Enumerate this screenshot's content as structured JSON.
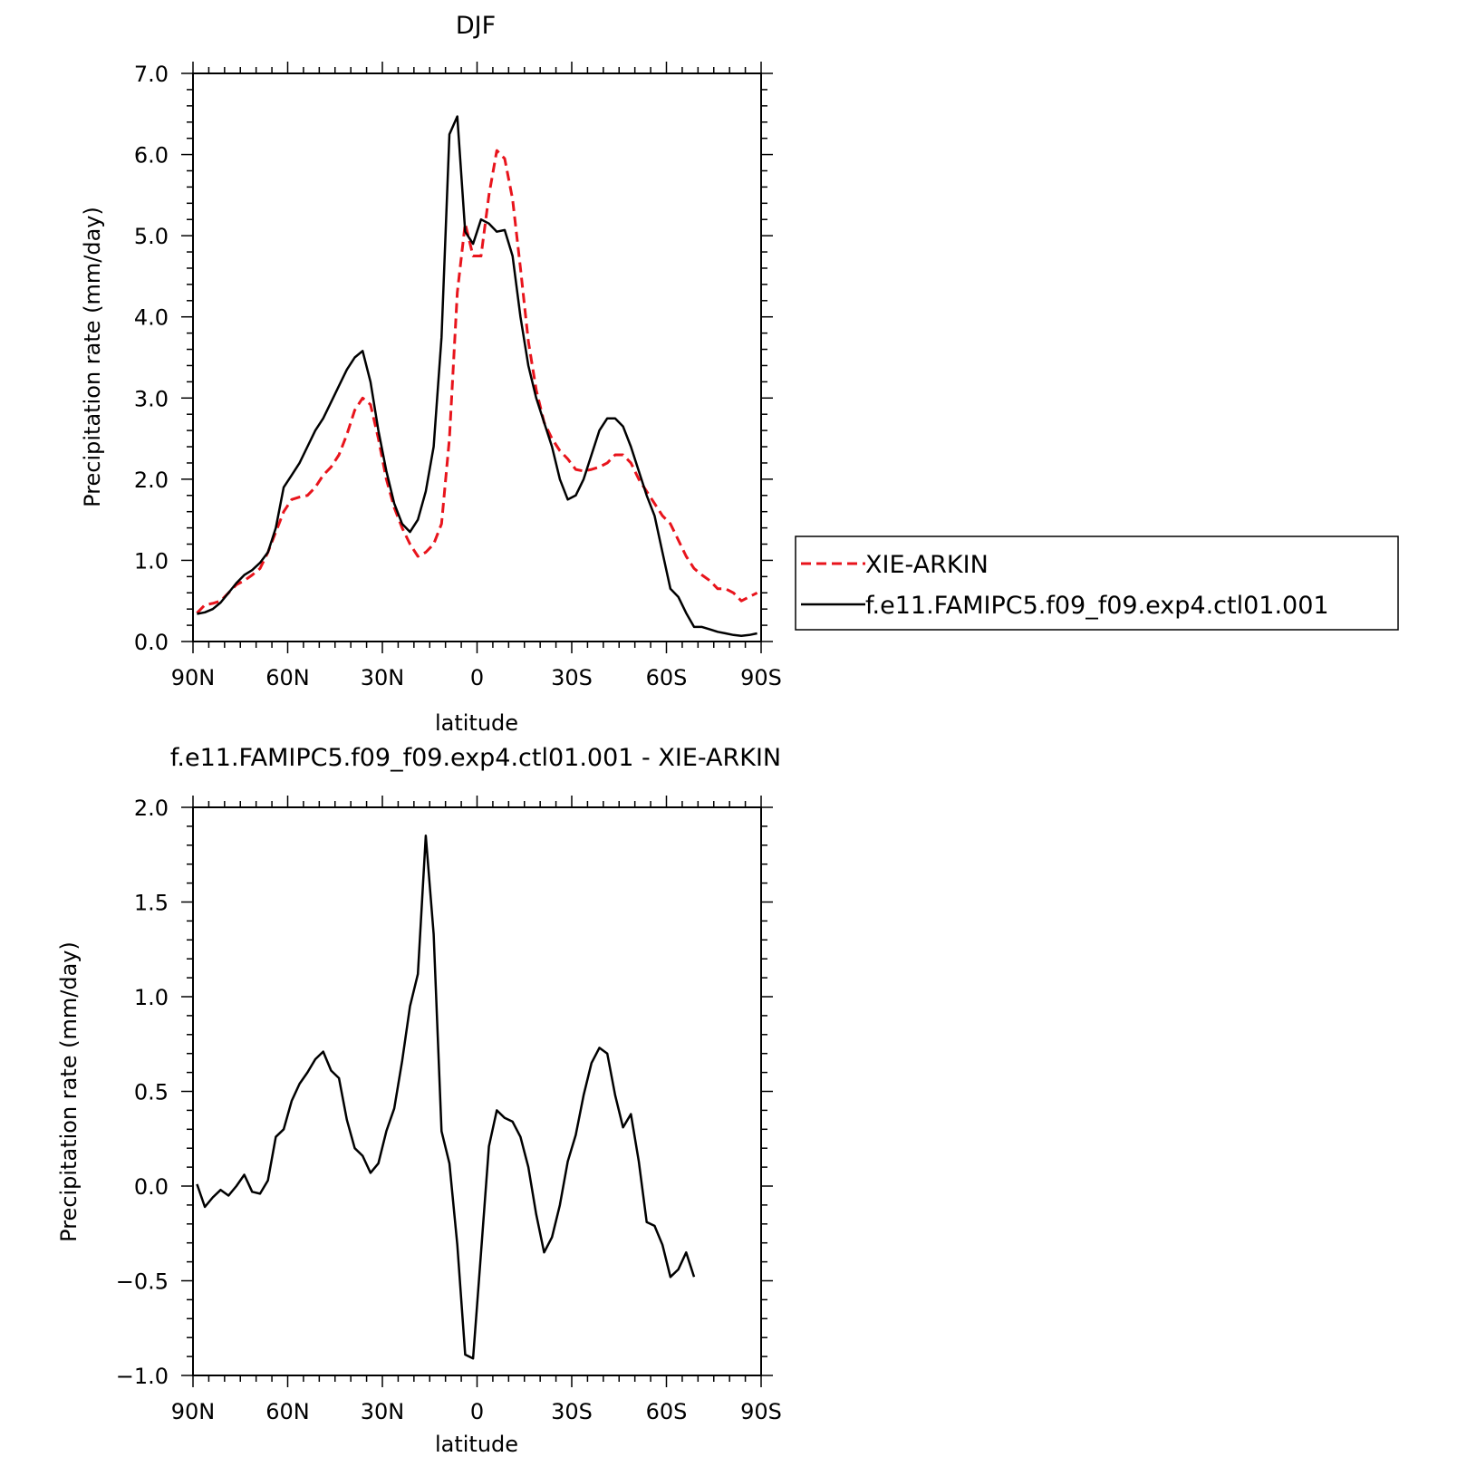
{
  "chart_data": [
    {
      "type": "line",
      "title": "DJF",
      "xlabel": "latitude",
      "ylabel": "Precipitation rate (mm/day)",
      "xlim": [
        90,
        -90
      ],
      "ylim": [
        0,
        7
      ],
      "xticks": [
        90,
        60,
        30,
        0,
        -30,
        -60,
        -90
      ],
      "xtick_labels": [
        "90N",
        "60N",
        "30N",
        "0",
        "30S",
        "60S",
        "90S"
      ],
      "yticks": [
        0,
        1,
        2,
        3,
        4,
        5,
        6,
        7
      ],
      "ytick_labels": [
        "0.0",
        "1.0",
        "2.0",
        "3.0",
        "4.0",
        "5.0",
        "6.0",
        "7.0"
      ],
      "legend": "right",
      "series": [
        {
          "name": "XIE-ARKIN",
          "color": "#e8141c",
          "dash": "dashed",
          "points": [
            [
              88.75,
              0.35
            ],
            [
              86.25,
              0.45
            ],
            [
              83.75,
              0.47
            ],
            [
              81.25,
              0.5
            ],
            [
              78.75,
              0.6
            ],
            [
              76.25,
              0.7
            ],
            [
              73.75,
              0.75
            ],
            [
              71.25,
              0.82
            ],
            [
              68.75,
              0.9
            ],
            [
              66.25,
              1.1
            ],
            [
              63.75,
              1.35
            ],
            [
              61.25,
              1.6
            ],
            [
              58.75,
              1.75
            ],
            [
              56.25,
              1.78
            ],
            [
              53.75,
              1.8
            ],
            [
              51.25,
              1.9
            ],
            [
              48.75,
              2.05
            ],
            [
              46.25,
              2.15
            ],
            [
              43.75,
              2.3
            ],
            [
              41.25,
              2.55
            ],
            [
              38.75,
              2.85
            ],
            [
              36.25,
              3.0
            ],
            [
              33.75,
              2.92
            ],
            [
              31.25,
              2.5
            ],
            [
              28.75,
              2.0
            ],
            [
              26.25,
              1.65
            ],
            [
              23.75,
              1.4
            ],
            [
              21.25,
              1.2
            ],
            [
              18.75,
              1.05
            ],
            [
              16.25,
              1.1
            ],
            [
              13.75,
              1.2
            ],
            [
              11.25,
              1.45
            ],
            [
              8.75,
              2.5
            ],
            [
              6.25,
              4.3
            ],
            [
              3.75,
              5.15
            ],
            [
              1.25,
              4.75
            ],
            [
              -1.25,
              4.75
            ],
            [
              -3.75,
              5.5
            ],
            [
              -6.25,
              6.05
            ],
            [
              -8.75,
              5.95
            ],
            [
              -11.25,
              5.45
            ],
            [
              -13.75,
              4.6
            ],
            [
              -16.25,
              3.7
            ],
            [
              -18.75,
              3.1
            ],
            [
              -21.25,
              2.7
            ],
            [
              -23.75,
              2.5
            ],
            [
              -26.25,
              2.35
            ],
            [
              -28.75,
              2.25
            ],
            [
              -31.25,
              2.12
            ],
            [
              -33.75,
              2.1
            ],
            [
              -36.25,
              2.12
            ],
            [
              -38.75,
              2.15
            ],
            [
              -41.25,
              2.2
            ],
            [
              -43.75,
              2.3
            ],
            [
              -46.25,
              2.3
            ],
            [
              -48.75,
              2.2
            ],
            [
              -51.25,
              2.0
            ],
            [
              -53.75,
              1.85
            ],
            [
              -56.25,
              1.7
            ],
            [
              -58.75,
              1.55
            ],
            [
              -61.25,
              1.45
            ],
            [
              -63.75,
              1.25
            ],
            [
              -66.25,
              1.05
            ],
            [
              -68.75,
              0.9
            ],
            [
              -71.25,
              0.82
            ],
            [
              -73.75,
              0.75
            ],
            [
              -76.25,
              0.65
            ],
            [
              -78.75,
              0.65
            ],
            [
              -81.25,
              0.6
            ],
            [
              -83.75,
              0.5
            ],
            [
              -86.25,
              0.55
            ],
            [
              -88.75,
              0.6
            ]
          ]
        },
        {
          "name": "f.e11.FAMIPC5.f09_f09.exp4.ctl01.001",
          "color": "#000000",
          "dash": "solid",
          "points": [
            [
              88.75,
              0.34
            ],
            [
              86.25,
              0.36
            ],
            [
              83.75,
              0.4
            ],
            [
              81.25,
              0.48
            ],
            [
              78.75,
              0.6
            ],
            [
              76.25,
              0.72
            ],
            [
              73.75,
              0.82
            ],
            [
              71.25,
              0.88
            ],
            [
              68.75,
              0.97
            ],
            [
              66.25,
              1.1
            ],
            [
              63.75,
              1.4
            ],
            [
              61.25,
              1.9
            ],
            [
              58.75,
              2.05
            ],
            [
              56.25,
              2.2
            ],
            [
              53.75,
              2.4
            ],
            [
              51.25,
              2.6
            ],
            [
              48.75,
              2.75
            ],
            [
              46.25,
              2.95
            ],
            [
              43.75,
              3.15
            ],
            [
              41.25,
              3.35
            ],
            [
              38.75,
              3.5
            ],
            [
              36.25,
              3.58
            ],
            [
              33.75,
              3.2
            ],
            [
              31.25,
              2.6
            ],
            [
              28.75,
              2.1
            ],
            [
              26.25,
              1.7
            ],
            [
              23.75,
              1.45
            ],
            [
              21.25,
              1.35
            ],
            [
              18.75,
              1.5
            ],
            [
              16.25,
              1.85
            ],
            [
              13.75,
              2.4
            ],
            [
              11.25,
              3.75
            ],
            [
              8.75,
              6.25
            ],
            [
              6.25,
              6.47
            ],
            [
              3.75,
              5.05
            ],
            [
              1.25,
              4.9
            ],
            [
              -1.25,
              5.2
            ],
            [
              -3.75,
              5.15
            ],
            [
              -6.25,
              5.05
            ],
            [
              -8.75,
              5.07
            ],
            [
              -11.25,
              4.75
            ],
            [
              -13.75,
              4.0
            ],
            [
              -16.25,
              3.4
            ],
            [
              -18.75,
              3.0
            ],
            [
              -21.25,
              2.7
            ],
            [
              -23.75,
              2.4
            ],
            [
              -26.25,
              2.0
            ],
            [
              -28.75,
              1.75
            ],
            [
              -31.25,
              1.8
            ],
            [
              -33.75,
              2.0
            ],
            [
              -36.25,
              2.3
            ],
            [
              -38.75,
              2.6
            ],
            [
              -41.25,
              2.75
            ],
            [
              -43.75,
              2.75
            ],
            [
              -46.25,
              2.65
            ],
            [
              -48.75,
              2.4
            ],
            [
              -51.25,
              2.1
            ],
            [
              -53.75,
              1.8
            ],
            [
              -56.25,
              1.55
            ],
            [
              -58.75,
              1.1
            ],
            [
              -61.25,
              0.65
            ],
            [
              -63.75,
              0.55
            ],
            [
              -66.25,
              0.35
            ],
            [
              -68.75,
              0.18
            ],
            [
              -71.25,
              0.18
            ],
            [
              -73.75,
              0.15
            ],
            [
              -76.25,
              0.12
            ],
            [
              -78.75,
              0.1
            ],
            [
              -81.25,
              0.08
            ],
            [
              -83.75,
              0.07
            ],
            [
              -86.25,
              0.08
            ],
            [
              -88.75,
              0.1
            ]
          ]
        }
      ]
    },
    {
      "type": "line",
      "title": "f.e11.FAMIPC5.f09_f09.exp4.ctl01.001 - XIE-ARKIN",
      "xlabel": "latitude",
      "ylabel": "Precipitation rate (mm/day)",
      "xlim": [
        90,
        -90
      ],
      "ylim": [
        -1.0,
        2.0
      ],
      "xticks": [
        90,
        60,
        30,
        0,
        -30,
        -60,
        -90
      ],
      "xtick_labels": [
        "90N",
        "60N",
        "30N",
        "0",
        "30S",
        "60S",
        "90S"
      ],
      "yticks": [
        -1.0,
        -0.5,
        0.0,
        0.5,
        1.0,
        1.5,
        2.0
      ],
      "ytick_labels": [
        "−1.0",
        "−0.5",
        "0.0",
        "0.5",
        "1.0",
        "1.5",
        "2.0"
      ],
      "series": [
        {
          "color": "#000000",
          "dash": "solid",
          "points": [
            [
              88.75,
              0.01
            ],
            [
              86.25,
              -0.11
            ],
            [
              83.75,
              -0.06
            ],
            [
              81.25,
              -0.02
            ],
            [
              78.75,
              -0.05
            ],
            [
              76.25,
              0.0
            ],
            [
              73.75,
              0.06
            ],
            [
              71.25,
              -0.03
            ],
            [
              68.75,
              -0.04
            ],
            [
              66.25,
              0.03
            ],
            [
              63.75,
              0.26
            ],
            [
              61.25,
              0.3
            ],
            [
              58.75,
              0.45
            ],
            [
              56.25,
              0.54
            ],
            [
              53.75,
              0.6
            ],
            [
              51.25,
              0.67
            ],
            [
              48.75,
              0.71
            ],
            [
              46.25,
              0.61
            ],
            [
              43.75,
              0.57
            ],
            [
              41.25,
              0.35
            ],
            [
              38.75,
              0.2
            ],
            [
              36.25,
              0.16
            ],
            [
              33.75,
              0.07
            ],
            [
              31.25,
              0.12
            ],
            [
              28.75,
              0.29
            ],
            [
              26.25,
              0.41
            ],
            [
              23.75,
              0.66
            ],
            [
              21.25,
              0.95
            ],
            [
              18.75,
              1.12
            ],
            [
              16.25,
              1.85
            ],
            [
              13.75,
              1.33
            ],
            [
              11.25,
              0.29
            ],
            [
              8.75,
              0.12
            ],
            [
              6.25,
              -0.31
            ],
            [
              3.75,
              -0.89
            ],
            [
              1.25,
              -0.91
            ],
            [
              -1.25,
              -0.35
            ],
            [
              -3.75,
              0.21
            ],
            [
              -6.25,
              0.4
            ],
            [
              -8.75,
              0.36
            ],
            [
              -11.25,
              0.34
            ],
            [
              -13.75,
              0.26
            ],
            [
              -16.25,
              0.1
            ],
            [
              -18.75,
              -0.15
            ],
            [
              -21.25,
              -0.35
            ],
            [
              -23.75,
              -0.27
            ],
            [
              -26.25,
              -0.1
            ],
            [
              -28.75,
              0.13
            ],
            [
              -31.25,
              0.27
            ],
            [
              -33.75,
              0.48
            ],
            [
              -36.25,
              0.65
            ],
            [
              -38.75,
              0.73
            ],
            [
              -41.25,
              0.7
            ],
            [
              -43.75,
              0.48
            ],
            [
              -46.25,
              0.31
            ],
            [
              -48.75,
              0.38
            ],
            [
              -51.25,
              0.13
            ],
            [
              -53.75,
              -0.19
            ],
            [
              -56.25,
              -0.21
            ],
            [
              -58.75,
              -0.31
            ],
            [
              -61.25,
              -0.48
            ],
            [
              -63.75,
              -0.44
            ],
            [
              -66.25,
              -0.35
            ],
            [
              -68.75,
              -0.48
            ]
          ]
        }
      ]
    }
  ]
}
